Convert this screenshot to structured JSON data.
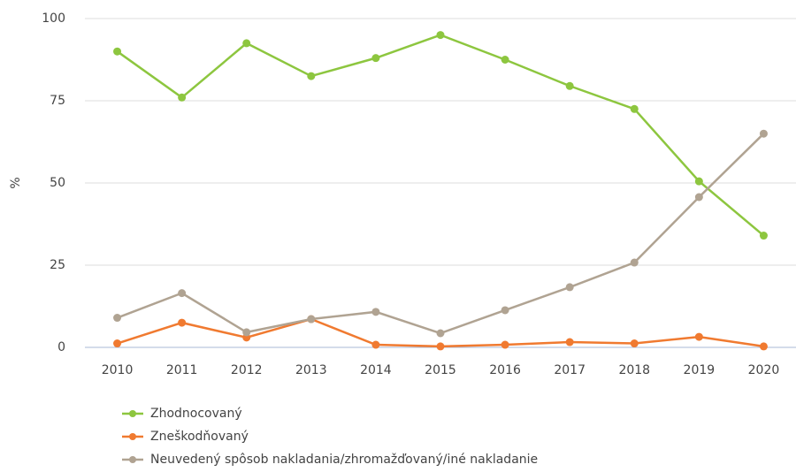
{
  "chart_data": {
    "type": "line",
    "y_label": "%",
    "categories": [
      "2010",
      "2011",
      "2012",
      "2013",
      "2014",
      "2015",
      "2016",
      "2017",
      "2018",
      "2019",
      "2020"
    ],
    "series": [
      {
        "name": "Zhodnocovaný",
        "color": "#8dc63f",
        "values": [
          90,
          76,
          92.5,
          82.5,
          88,
          95,
          87.5,
          79.5,
          72.5,
          50.5,
          34
        ]
      },
      {
        "name": "Zneškodňovaný",
        "color": "#f07a30",
        "values": [
          1.2,
          7.5,
          3,
          8.6,
          0.8,
          0.3,
          0.8,
          1.6,
          1.2,
          3.2,
          0.3
        ]
      },
      {
        "name": "Neuvedený spôsob nakladania/zhromažďovaný/iné nakladanie",
        "color": "#b0a392",
        "values": [
          9,
          16.5,
          4.6,
          8.6,
          10.8,
          4.3,
          11.3,
          18.3,
          25.8,
          45.7,
          65
        ]
      }
    ],
    "ylim": [
      0,
      100
    ],
    "yticks": [
      0,
      25,
      50,
      75,
      100
    ],
    "grid": true
  }
}
